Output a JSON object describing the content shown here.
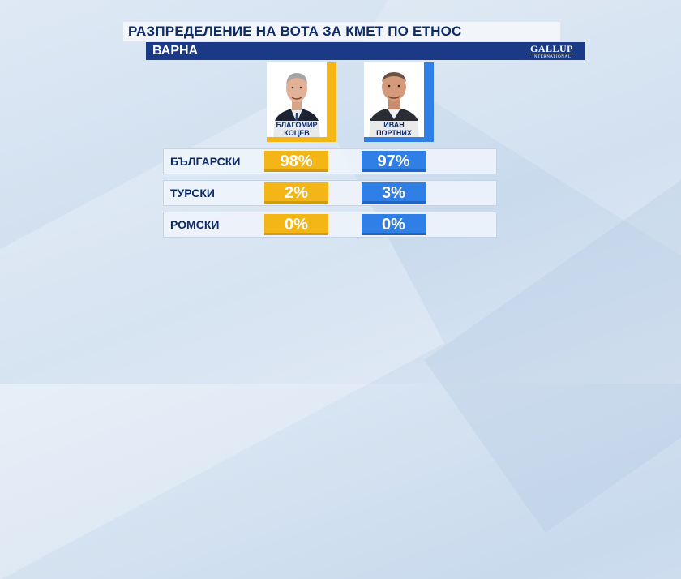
{
  "title": "РАЗПРЕДЕЛЕНИЕ НА ВОТА ЗА КМЕТ ПО ЕТНОС",
  "subtitle": "ВАРНА",
  "logo": {
    "main": "GALLUP",
    "sub": "INTERNATIONAL"
  },
  "colors": {
    "candidate1": "#f4b617",
    "candidate2": "#2f7fe6",
    "header": "#1b3a86"
  },
  "candidates": [
    {
      "name_line1": "БЛАГОМИР",
      "name_line2": "КОЦЕВ",
      "icon": "person-photo-icon"
    },
    {
      "name_line1": "ИВАН",
      "name_line2": "ПОРТНИХ",
      "icon": "person-photo-icon"
    }
  ],
  "chart_data": {
    "type": "table",
    "title": "РАЗПРЕДЕЛЕНИЕ НА ВОТА ЗА КМЕТ ПО ЕТНОС",
    "subtitle": "ВАРНА",
    "categories": [
      "БЪЛГАРСКИ",
      "ТУРСКИ",
      "РОМСКИ"
    ],
    "series": [
      {
        "name": "БЛАГОМИР КОЦЕВ",
        "values": [
          98,
          2,
          0
        ],
        "labels": [
          "98%",
          "2%",
          "0%"
        ]
      },
      {
        "name": "ИВАН ПОРТНИХ",
        "values": [
          97,
          3,
          0
        ],
        "labels": [
          "97%",
          "3%",
          "0%"
        ]
      }
    ]
  }
}
